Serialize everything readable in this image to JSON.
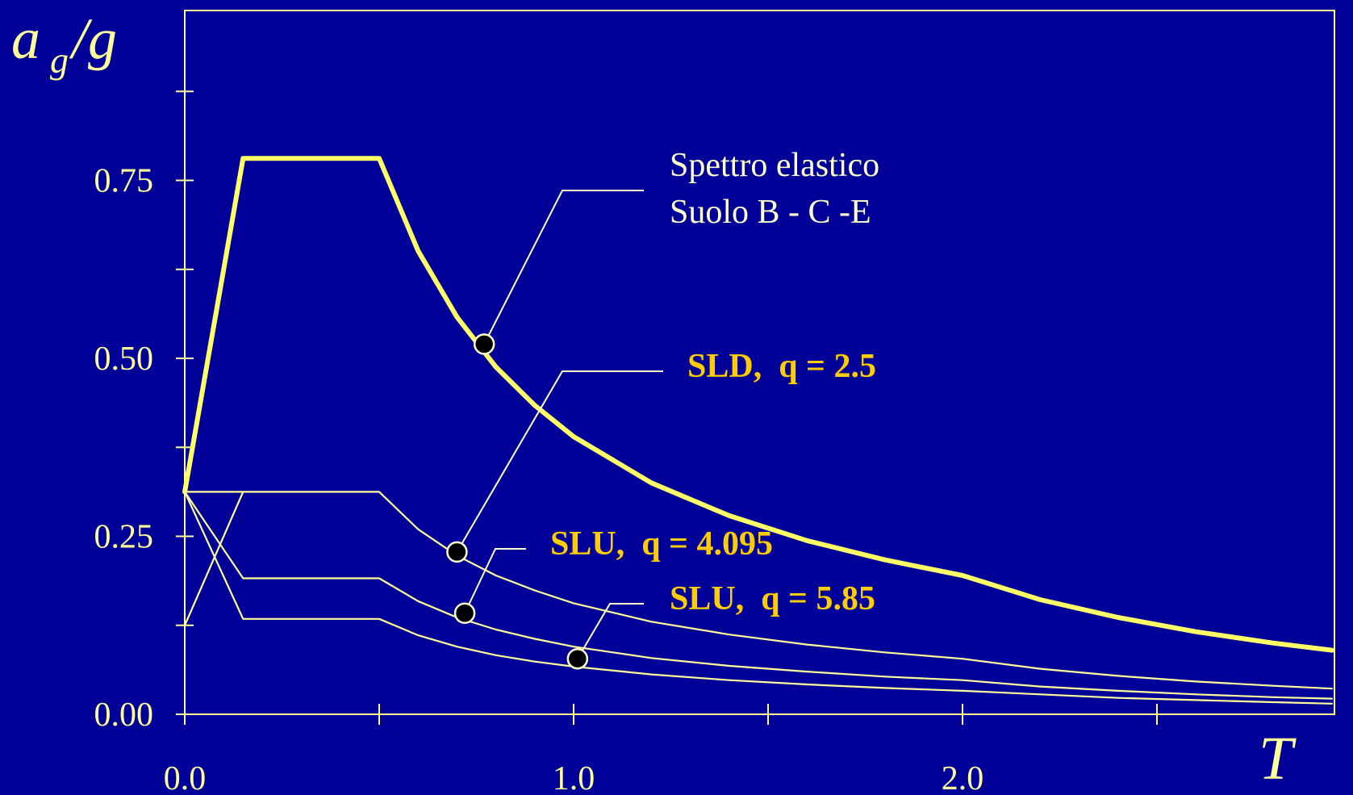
{
  "chart_data": {
    "type": "line",
    "xlabel": "T",
    "ylabel": {
      "main": "a",
      "sub": "g",
      "tail": "/g"
    },
    "xlim": [
      0,
      2.95
    ],
    "ylim": [
      0,
      0.75
    ],
    "xticks": [
      0.0,
      0.5,
      1.0,
      1.5,
      2.0,
      2.5
    ],
    "xtick_labels": [
      {
        "value": 0.0,
        "label": "0.0"
      },
      {
        "value": 1.0,
        "label": "1.0"
      },
      {
        "value": 2.0,
        "label": "2.0"
      }
    ],
    "yticks": [
      0.0,
      0.125,
      0.25,
      0.375,
      0.5,
      0.625,
      0.75,
      0.875
    ],
    "ytick_labels": [
      {
        "value": 0.0,
        "label": "0.00"
      },
      {
        "value": 0.25,
        "label": "0.25"
      },
      {
        "value": 0.5,
        "label": "0.50"
      },
      {
        "value": 0.75,
        "label": "0.75"
      }
    ],
    "series": [
      {
        "name": "Spettro elastico",
        "role": "elastic",
        "x": [
          0.0,
          0.15,
          0.5,
          0.6,
          0.7,
          0.8,
          0.9,
          1.0,
          1.2,
          1.4,
          1.6,
          1.8,
          2.0,
          2.2,
          2.4,
          2.6,
          2.8,
          2.95
        ],
        "y": [
          0.3125,
          0.781,
          0.781,
          0.651,
          0.558,
          0.488,
          0.434,
          0.39,
          0.325,
          0.279,
          0.244,
          0.217,
          0.195,
          0.161,
          0.136,
          0.116,
          0.1,
          0.09
        ]
      },
      {
        "name": "SLD, q = 2.5",
        "role": "inelastic",
        "x": [
          0.0,
          0.15,
          0.5,
          0.6,
          0.7,
          0.8,
          0.9,
          1.0,
          1.2,
          1.4,
          1.6,
          1.8,
          2.0,
          2.2,
          2.4,
          2.6,
          2.8,
          2.95
        ],
        "y": [
          0.3125,
          0.3125,
          0.3125,
          0.26,
          0.223,
          0.195,
          0.174,
          0.156,
          0.13,
          0.112,
          0.098,
          0.087,
          0.078,
          0.064,
          0.054,
          0.046,
          0.04,
          0.036
        ]
      },
      {
        "name": "SLU, q = 4.095",
        "role": "inelastic",
        "x": [
          0.0,
          0.15,
          0.5,
          0.6,
          0.7,
          0.8,
          0.9,
          1.0,
          1.2,
          1.4,
          1.6,
          1.8,
          2.0,
          2.2,
          2.4,
          2.6,
          2.8,
          2.95
        ],
        "y": [
          0.3125,
          0.191,
          0.191,
          0.159,
          0.136,
          0.119,
          0.106,
          0.095,
          0.079,
          0.068,
          0.06,
          0.053,
          0.048,
          0.039,
          0.033,
          0.028,
          0.024,
          0.022
        ]
      },
      {
        "name": "SLU, q = 5.85",
        "role": "inelastic",
        "x": [
          0.0,
          0.15,
          0.5,
          0.6,
          0.7,
          0.8,
          0.9,
          1.0,
          1.2,
          1.4,
          1.6,
          1.8,
          2.0,
          2.2,
          2.4,
          2.6,
          2.8,
          2.95
        ],
        "y": [
          0.3125,
          0.134,
          0.134,
          0.111,
          0.095,
          0.083,
          0.074,
          0.067,
          0.056,
          0.048,
          0.042,
          0.037,
          0.033,
          0.028,
          0.023,
          0.02,
          0.017,
          0.015
        ]
      },
      {
        "name": "",
        "role": "ramp",
        "x": [
          0.0,
          0.15
        ],
        "y": [
          0.125,
          0.3125
        ]
      }
    ],
    "annotations": [
      {
        "lines": [
          "Spettro elastico",
          "Suolo B - C -E"
        ],
        "style": "white",
        "marker": {
          "x": 0.77,
          "y": 0.52
        }
      },
      {
        "lines": [
          "SLD,  q = 2.5"
        ],
        "style": "bold",
        "marker": {
          "x": 0.7,
          "y": 0.228
        }
      },
      {
        "lines": [
          "SLU,  q = 4.095"
        ],
        "style": "bold",
        "marker": {
          "x": 0.72,
          "y": 0.142
        }
      },
      {
        "lines": [
          "SLU,  q = 5.85"
        ],
        "style": "bold",
        "marker": {
          "x": 1.01,
          "y": 0.078
        }
      }
    ],
    "grid": false,
    "legend": "none",
    "colors": {
      "background": "#000099",
      "axes": "#ffff99",
      "elastic": "#ffff66",
      "inelastic": "#ffff99",
      "annotation_bold": "#ffcc00",
      "annotation_plain": "#ffffcc",
      "marker": "#000000"
    }
  }
}
